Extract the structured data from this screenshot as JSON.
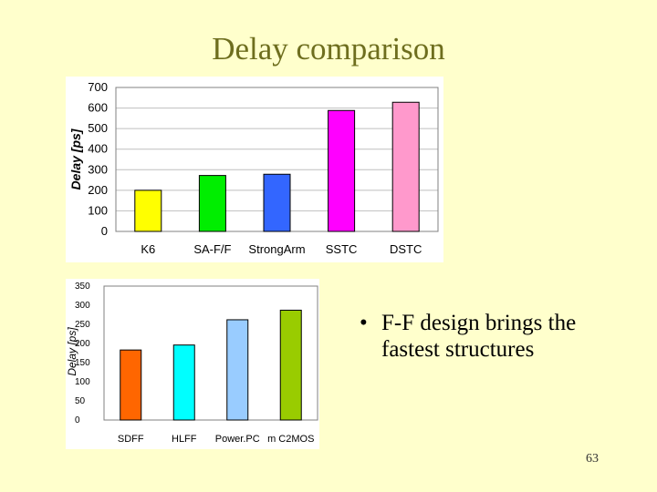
{
  "slide": {
    "title": "Delay comparison",
    "bullet": "F-F design brings the fastest structures",
    "page_number": "63"
  },
  "chart_data": [
    {
      "type": "bar",
      "title": "",
      "xlabel": "",
      "ylabel": "Delay [ps]",
      "categories": [
        "K6",
        "SA-F/F",
        "StrongArm",
        "SSTC",
        "DSTC"
      ],
      "values": [
        200,
        272,
        278,
        588,
        628
      ],
      "colors": [
        "#FFFF00",
        "#00EE00",
        "#3366FF",
        "#FF00FF",
        "#FF99CC"
      ],
      "ylim": [
        0,
        700
      ],
      "yticks": [
        0,
        100,
        200,
        300,
        400,
        500,
        600,
        700
      ],
      "grid": true,
      "legend": "none"
    },
    {
      "type": "bar",
      "title": "",
      "xlabel": "",
      "ylabel": "Delay [ps]",
      "categories": [
        "SDFF",
        "HLFF",
        "Power.PC",
        "m C2MOS"
      ],
      "values": [
        183,
        196,
        262,
        287
      ],
      "colors": [
        "#FF6600",
        "#00FFFF",
        "#99CCFF",
        "#99CC00"
      ],
      "ylim": [
        0,
        350
      ],
      "yticks": [
        0,
        50,
        100,
        150,
        200,
        250,
        300,
        350
      ],
      "grid": false,
      "legend": "none"
    }
  ]
}
